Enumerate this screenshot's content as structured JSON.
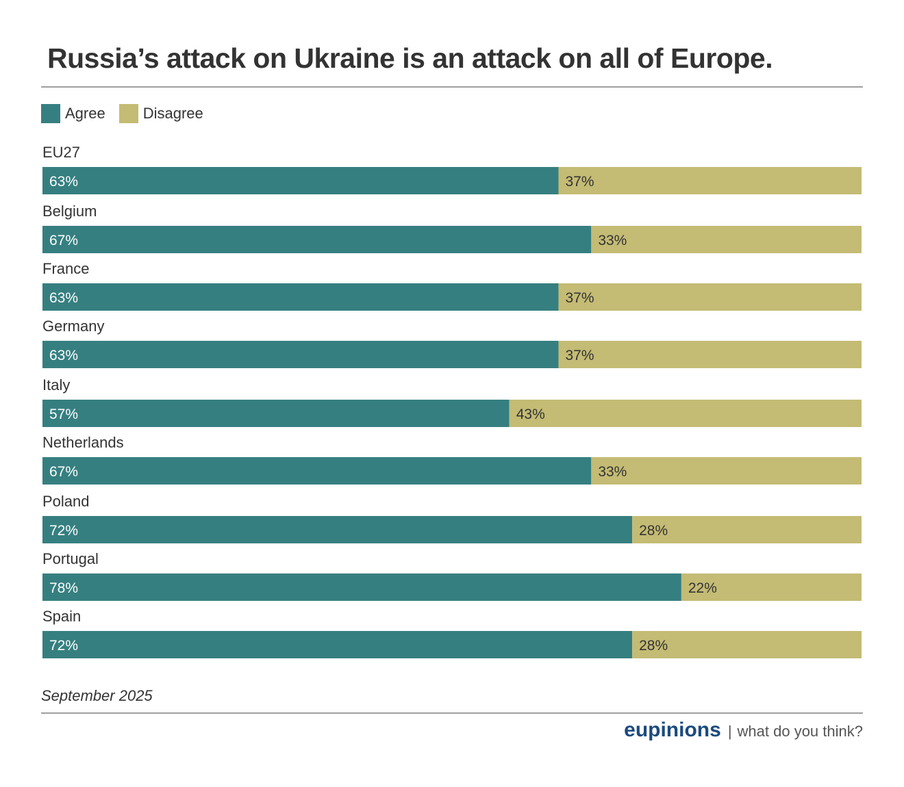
{
  "header": {
    "title": "Russia’s attack on Ukraine is an attack on all of Europe."
  },
  "footer": {
    "date": "September 2025",
    "brand": "eupinions",
    "separator": "|",
    "tagline": "what do you think?"
  },
  "colors": {
    "agree": "#367f80",
    "disagree": "#c4bb74",
    "agree_label": "#ffffff",
    "disagree_label": "#333333",
    "brand": "#1b4a7e"
  },
  "chart_data": {
    "type": "bar",
    "orientation": "horizontal",
    "stacked": true,
    "title": "Russia’s attack on Ukraine is an attack on all of Europe.",
    "xlabel": "",
    "ylabel": "",
    "xlim": [
      0,
      100
    ],
    "grid": false,
    "legend_position": "top-left",
    "categories": [
      "EU27",
      "Belgium",
      "France",
      "Germany",
      "Italy",
      "Netherlands",
      "Poland",
      "Portugal",
      "Spain"
    ],
    "series": [
      {
        "name": "Agree",
        "color": "#367f80",
        "values": [
          63,
          67,
          63,
          63,
          57,
          67,
          72,
          78,
          72
        ]
      },
      {
        "name": "Disagree",
        "color": "#c4bb74",
        "values": [
          37,
          33,
          37,
          37,
          43,
          33,
          28,
          22,
          28
        ]
      }
    ],
    "value_suffix": "%",
    "annotations": [
      "September 2025"
    ]
  }
}
